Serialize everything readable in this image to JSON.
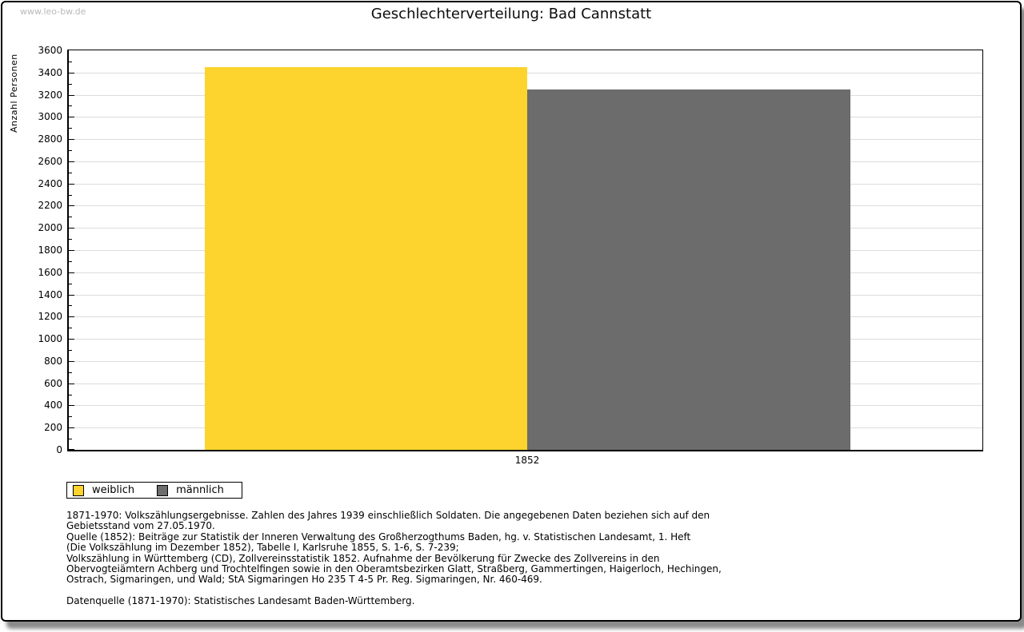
{
  "watermark": "www.leo-bw.de",
  "title": "Geschlechterverteilung: Bad Cannstatt",
  "chart_data": {
    "type": "bar",
    "title": "Geschlechterverteilung: Bad Cannstatt",
    "categories": [
      "1852"
    ],
    "series": [
      {
        "name": "weiblich",
        "values": [
          3450
        ],
        "color": "#FCD42D"
      },
      {
        "name": "männlich",
        "values": [
          3250
        ],
        "color": "#6C6C6C"
      }
    ],
    "xlabel": "",
    "ylabel": "Anzahl Personen",
    "ylim": [
      0,
      3600
    ],
    "ytick_step": 200,
    "yminor_step": 100,
    "grid": true,
    "gridline_color": "#dcdcdc",
    "legend_position": "bottom-left"
  },
  "legend": {
    "items": [
      {
        "label": "weiblich",
        "color": "#FCD42D"
      },
      {
        "label": "männlich",
        "color": "#6C6C6C"
      }
    ]
  },
  "footnotes": {
    "lines": [
      "1871-1970: Volkszählungsergebnisse. Zahlen des Jahres 1939 einschließlich Soldaten. Die angegebenen Daten beziehen sich auf den",
      "Gebietsstand vom 27.05.1970.",
      "Quelle (1852): Beiträge zur Statistik der Inneren Verwaltung des Großherzogthums Baden, hg. v. Statistischen Landesamt, 1. Heft",
      "(Die Volkszählung im Dezember 1852), Tabelle I, Karlsruhe 1855, S. 1-6, S. 7-239;",
      "Volkszählung in Württemberg (CD), Zollvereinsstatistik 1852. Aufnahme der Bevölkerung für Zwecke des Zollvereins in den",
      "Obervogteiämtern Achberg und Trochtelfingen sowie in den Oberamtsbezirken Glatt, Straßberg, Gammertingen, Haigerloch, Hechingen,",
      "Ostrach, Sigmaringen, und Wald; StA Sigmaringen Ho 235 T 4-5 Pr. Reg. Sigmaringen, Nr. 460-469.",
      "",
      "Datenquelle (1871-1970): Statistisches Landesamt Baden-Württemberg."
    ]
  }
}
